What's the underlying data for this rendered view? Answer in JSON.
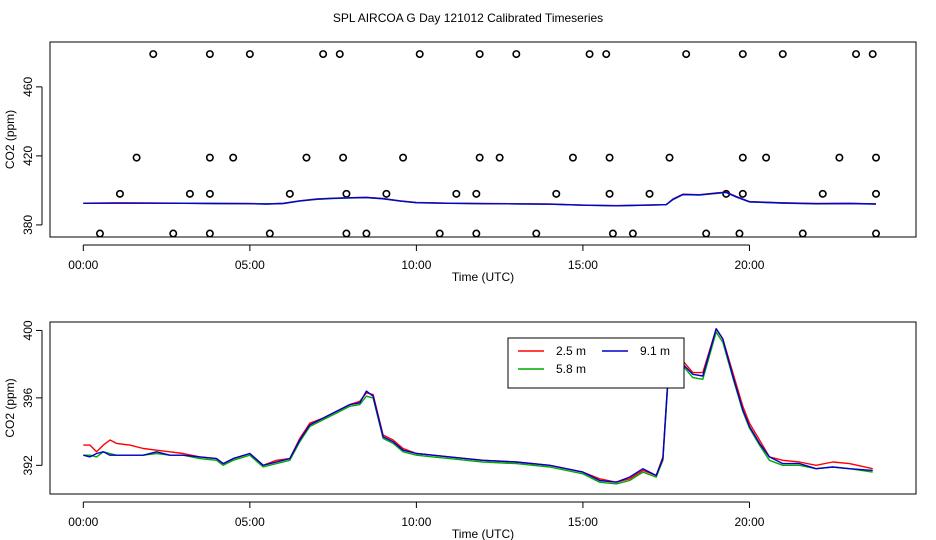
{
  "title": "SPL AIRCOA G  Day 121012  Calibrated Timeseries",
  "chart_data": [
    {
      "type": "line",
      "xlabel": "Time (UTC)",
      "ylabel": "CO2 (ppm)",
      "xlim": [
        -1,
        25
      ],
      "ylim": [
        373,
        486
      ],
      "xticks": [
        0,
        5,
        10,
        15,
        20
      ],
      "xtick_labels": [
        "00:00",
        "05:00",
        "10:00",
        "15:00",
        "20:00"
      ],
      "yticks": [
        380,
        420,
        460
      ],
      "ytick_labels": [
        "380",
        "420",
        "460"
      ],
      "series": [
        {
          "name": "2.5 m",
          "color": "#ff0000",
          "x": [
            0,
            1,
            2,
            3,
            4,
            5,
            5.5,
            6,
            6.5,
            7,
            7.5,
            8,
            8.5,
            9,
            9.5,
            10,
            11,
            12,
            13,
            14,
            15,
            16,
            17,
            17.5,
            17.7,
            18,
            18.5,
            19,
            19.3,
            19.6,
            20,
            21,
            22,
            23,
            23.8
          ],
          "y": [
            392.6,
            392.8,
            392.7,
            392.6,
            392.4,
            392.4,
            392.2,
            392.5,
            394.0,
            395.0,
            395.5,
            395.8,
            396.0,
            395.3,
            394.0,
            393.0,
            392.6,
            392.4,
            392.3,
            392.1,
            391.5,
            391.2,
            391.6,
            391.8,
            395.0,
            397.8,
            397.5,
            398.5,
            399.0,
            396.5,
            393.5,
            392.8,
            392.4,
            392.5,
            392.2
          ]
        },
        {
          "name": "5.8 m",
          "color": "#00bb00",
          "x": [
            0,
            1,
            2,
            3,
            4,
            5,
            5.5,
            6,
            6.5,
            7,
            7.5,
            8,
            8.5,
            9,
            9.5,
            10,
            11,
            12,
            13,
            14,
            15,
            16,
            17,
            17.5,
            17.7,
            18,
            18.5,
            19,
            19.3,
            19.6,
            20,
            21,
            22,
            23,
            23.8
          ],
          "y": [
            392.5,
            392.6,
            392.6,
            392.5,
            392.4,
            392.3,
            392.1,
            392.4,
            393.8,
            394.8,
            395.3,
            395.6,
            395.8,
            395.1,
            393.8,
            392.8,
            392.5,
            392.3,
            392.2,
            392.0,
            391.4,
            391.1,
            391.4,
            391.7,
            394.6,
            397.5,
            397.3,
            398.2,
            398.8,
            396.2,
            393.3,
            392.6,
            392.2,
            392.3,
            392.1
          ]
        },
        {
          "name": "9.1 m",
          "color": "#0000dd",
          "x": [
            0,
            1,
            2,
            3,
            4,
            5,
            5.5,
            6,
            6.5,
            7,
            7.5,
            8,
            8.5,
            9,
            9.5,
            10,
            11,
            12,
            13,
            14,
            15,
            16,
            17,
            17.5,
            17.7,
            18,
            18.5,
            19,
            19.3,
            19.6,
            20,
            21,
            22,
            23,
            23.8
          ],
          "y": [
            392.5,
            392.6,
            392.6,
            392.5,
            392.4,
            392.3,
            392.1,
            392.4,
            393.9,
            394.9,
            395.4,
            395.7,
            395.9,
            395.2,
            393.9,
            392.9,
            392.5,
            392.3,
            392.2,
            392.0,
            391.4,
            391.1,
            391.5,
            391.7,
            394.8,
            397.6,
            397.4,
            398.4,
            398.9,
            396.3,
            393.4,
            392.7,
            392.3,
            392.4,
            392.1
          ]
        }
      ],
      "scatter_points": {
        "x": [
          2.1,
          3.8,
          5.0,
          7.2,
          7.7,
          10.1,
          11.9,
          13.0,
          15.2,
          15.7,
          18.1,
          19.8,
          21.0,
          23.2,
          23.7,
          1.6,
          3.8,
          4.5,
          6.7,
          7.8,
          9.6,
          11.9,
          12.5,
          14.7,
          15.8,
          17.6,
          19.8,
          20.5,
          22.7,
          23.8,
          1.1,
          3.2,
          3.8,
          6.2,
          7.9,
          9.1,
          11.2,
          11.8,
          14.2,
          15.8,
          17.0,
          19.3,
          19.8,
          22.2,
          23.8,
          0.5,
          2.7,
          3.8,
          5.6,
          7.9,
          8.5,
          10.7,
          11.8,
          13.6,
          15.9,
          16.5,
          18.7,
          19.7,
          21.6,
          23.8
        ],
        "y": [
          479,
          479,
          479,
          479,
          479,
          479,
          479,
          479,
          479,
          479,
          479,
          479,
          479,
          479,
          479,
          419,
          419,
          419,
          419,
          419,
          419,
          419,
          419,
          419,
          419,
          419,
          419,
          419,
          419,
          419,
          398,
          398,
          398,
          398,
          398,
          398,
          398,
          398,
          398,
          398,
          398,
          398,
          398,
          398,
          398,
          375,
          375,
          375,
          375,
          375,
          375,
          375,
          375,
          375,
          375,
          375,
          375,
          375,
          375,
          375
        ]
      }
    },
    {
      "type": "line",
      "xlabel": "Time (UTC)",
      "ylabel": "CO2 (ppm)",
      "xlim": [
        -1,
        25
      ],
      "ylim": [
        390.3,
        400.5
      ],
      "xticks": [
        0,
        5,
        10,
        15,
        20
      ],
      "xtick_labels": [
        "00:00",
        "05:00",
        "10:00",
        "15:00",
        "20:00"
      ],
      "yticks": [
        392,
        396,
        400
      ],
      "ytick_labels": [
        "392",
        "396",
        "400"
      ],
      "legend": {
        "position": "top-center",
        "entries": [
          "2.5 m",
          "5.8 m",
          "9.1 m"
        ]
      },
      "series": [
        {
          "name": "2.5 m",
          "color": "#ff0000",
          "x": [
            0,
            0.2,
            0.4,
            0.6,
            0.8,
            1.0,
            1.4,
            1.8,
            2.2,
            2.6,
            3,
            3.5,
            4,
            4.2,
            4.5,
            5,
            5.4,
            5.8,
            6.2,
            6.5,
            6.8,
            7.2,
            7.6,
            8,
            8.3,
            8.5,
            8.7,
            9,
            9.3,
            9.6,
            10,
            10.5,
            11,
            12,
            13,
            14,
            15,
            15.5,
            16,
            16.4,
            16.8,
            17.2,
            17.4,
            17.6,
            17.8,
            18,
            18.3,
            18.6,
            18.8,
            19.0,
            19.2,
            19.5,
            19.8,
            20,
            20.3,
            20.6,
            21,
            21.5,
            22,
            22.5,
            23,
            23.7
          ],
          "y": [
            393.2,
            393.2,
            392.8,
            393.2,
            393.5,
            393.3,
            393.2,
            393.0,
            392.9,
            392.8,
            392.7,
            392.5,
            392.4,
            392.1,
            392.4,
            392.7,
            392.0,
            392.3,
            392.4,
            393.6,
            394.5,
            394.8,
            395.2,
            395.6,
            395.8,
            396.3,
            396.2,
            393.8,
            393.5,
            393.0,
            392.7,
            392.6,
            392.5,
            392.3,
            392.2,
            392.0,
            391.6,
            391.2,
            391.0,
            391.2,
            391.7,
            391.4,
            392.5,
            398.5,
            397.8,
            398.2,
            397.5,
            397.5,
            398.8,
            400.1,
            399.5,
            397.5,
            395.5,
            394.5,
            393.5,
            392.5,
            392.3,
            392.2,
            392.0,
            392.2,
            392.1,
            391.8
          ]
        },
        {
          "name": "5.8 m",
          "color": "#00aa00",
          "x": [
            0,
            0.2,
            0.4,
            0.6,
            0.8,
            1.0,
            1.4,
            1.8,
            2.2,
            2.6,
            3,
            3.5,
            4,
            4.2,
            4.5,
            5,
            5.4,
            5.8,
            6.2,
            6.5,
            6.8,
            7.2,
            7.6,
            8,
            8.3,
            8.5,
            8.7,
            9,
            9.3,
            9.6,
            10,
            10.5,
            11,
            12,
            13,
            14,
            15,
            15.5,
            16,
            16.4,
            16.8,
            17.2,
            17.4,
            17.6,
            17.8,
            18,
            18.3,
            18.6,
            18.8,
            19.0,
            19.2,
            19.5,
            19.8,
            20,
            20.3,
            20.6,
            21,
            21.5,
            22,
            22.5,
            23,
            23.7
          ],
          "y": [
            392.6,
            392.6,
            392.5,
            392.8,
            392.7,
            392.6,
            392.6,
            392.6,
            392.7,
            392.6,
            392.6,
            392.4,
            392.3,
            392.0,
            392.3,
            392.6,
            391.9,
            392.1,
            392.3,
            393.4,
            394.3,
            394.7,
            395.1,
            395.5,
            395.6,
            396.1,
            396.0,
            393.6,
            393.3,
            392.8,
            392.6,
            392.5,
            392.4,
            392.2,
            392.1,
            391.9,
            391.5,
            391.0,
            390.9,
            391.1,
            391.6,
            391.3,
            392.3,
            398.3,
            397.4,
            397.9,
            397.2,
            397.1,
            398.5,
            399.9,
            399.3,
            397.2,
            395.2,
            394.2,
            393.2,
            392.3,
            392.0,
            392.0,
            391.8,
            391.9,
            391.8,
            391.6
          ]
        },
        {
          "name": "9.1 m",
          "color": "#0000cc",
          "x": [
            0,
            0.2,
            0.4,
            0.6,
            0.8,
            1.0,
            1.4,
            1.8,
            2.2,
            2.6,
            3,
            3.5,
            4,
            4.2,
            4.5,
            5,
            5.4,
            5.8,
            6.2,
            6.5,
            6.8,
            7.2,
            7.6,
            8,
            8.3,
            8.5,
            8.7,
            9,
            9.3,
            9.6,
            10,
            10.5,
            11,
            12,
            13,
            14,
            15,
            15.5,
            16,
            16.4,
            16.8,
            17.2,
            17.4,
            17.6,
            17.8,
            18,
            18.3,
            18.6,
            18.8,
            19.0,
            19.2,
            19.5,
            19.8,
            20,
            20.3,
            20.6,
            21,
            21.5,
            22,
            22.5,
            23,
            23.7
          ],
          "y": [
            392.6,
            392.5,
            392.7,
            392.8,
            392.6,
            392.6,
            392.6,
            392.6,
            392.8,
            392.6,
            392.6,
            392.5,
            392.4,
            392.1,
            392.4,
            392.7,
            392.0,
            392.2,
            392.4,
            393.5,
            394.4,
            394.8,
            395.2,
            395.6,
            395.7,
            396.4,
            396.1,
            393.7,
            393.4,
            392.9,
            392.7,
            392.6,
            392.5,
            392.3,
            392.2,
            392.0,
            391.6,
            391.1,
            391.0,
            391.3,
            391.8,
            391.4,
            392.4,
            398.6,
            397.6,
            398.0,
            397.4,
            397.3,
            398.7,
            400.1,
            399.5,
            397.3,
            395.3,
            394.3,
            393.3,
            392.5,
            392.1,
            392.1,
            391.8,
            391.9,
            391.8,
            391.7
          ]
        }
      ]
    }
  ]
}
